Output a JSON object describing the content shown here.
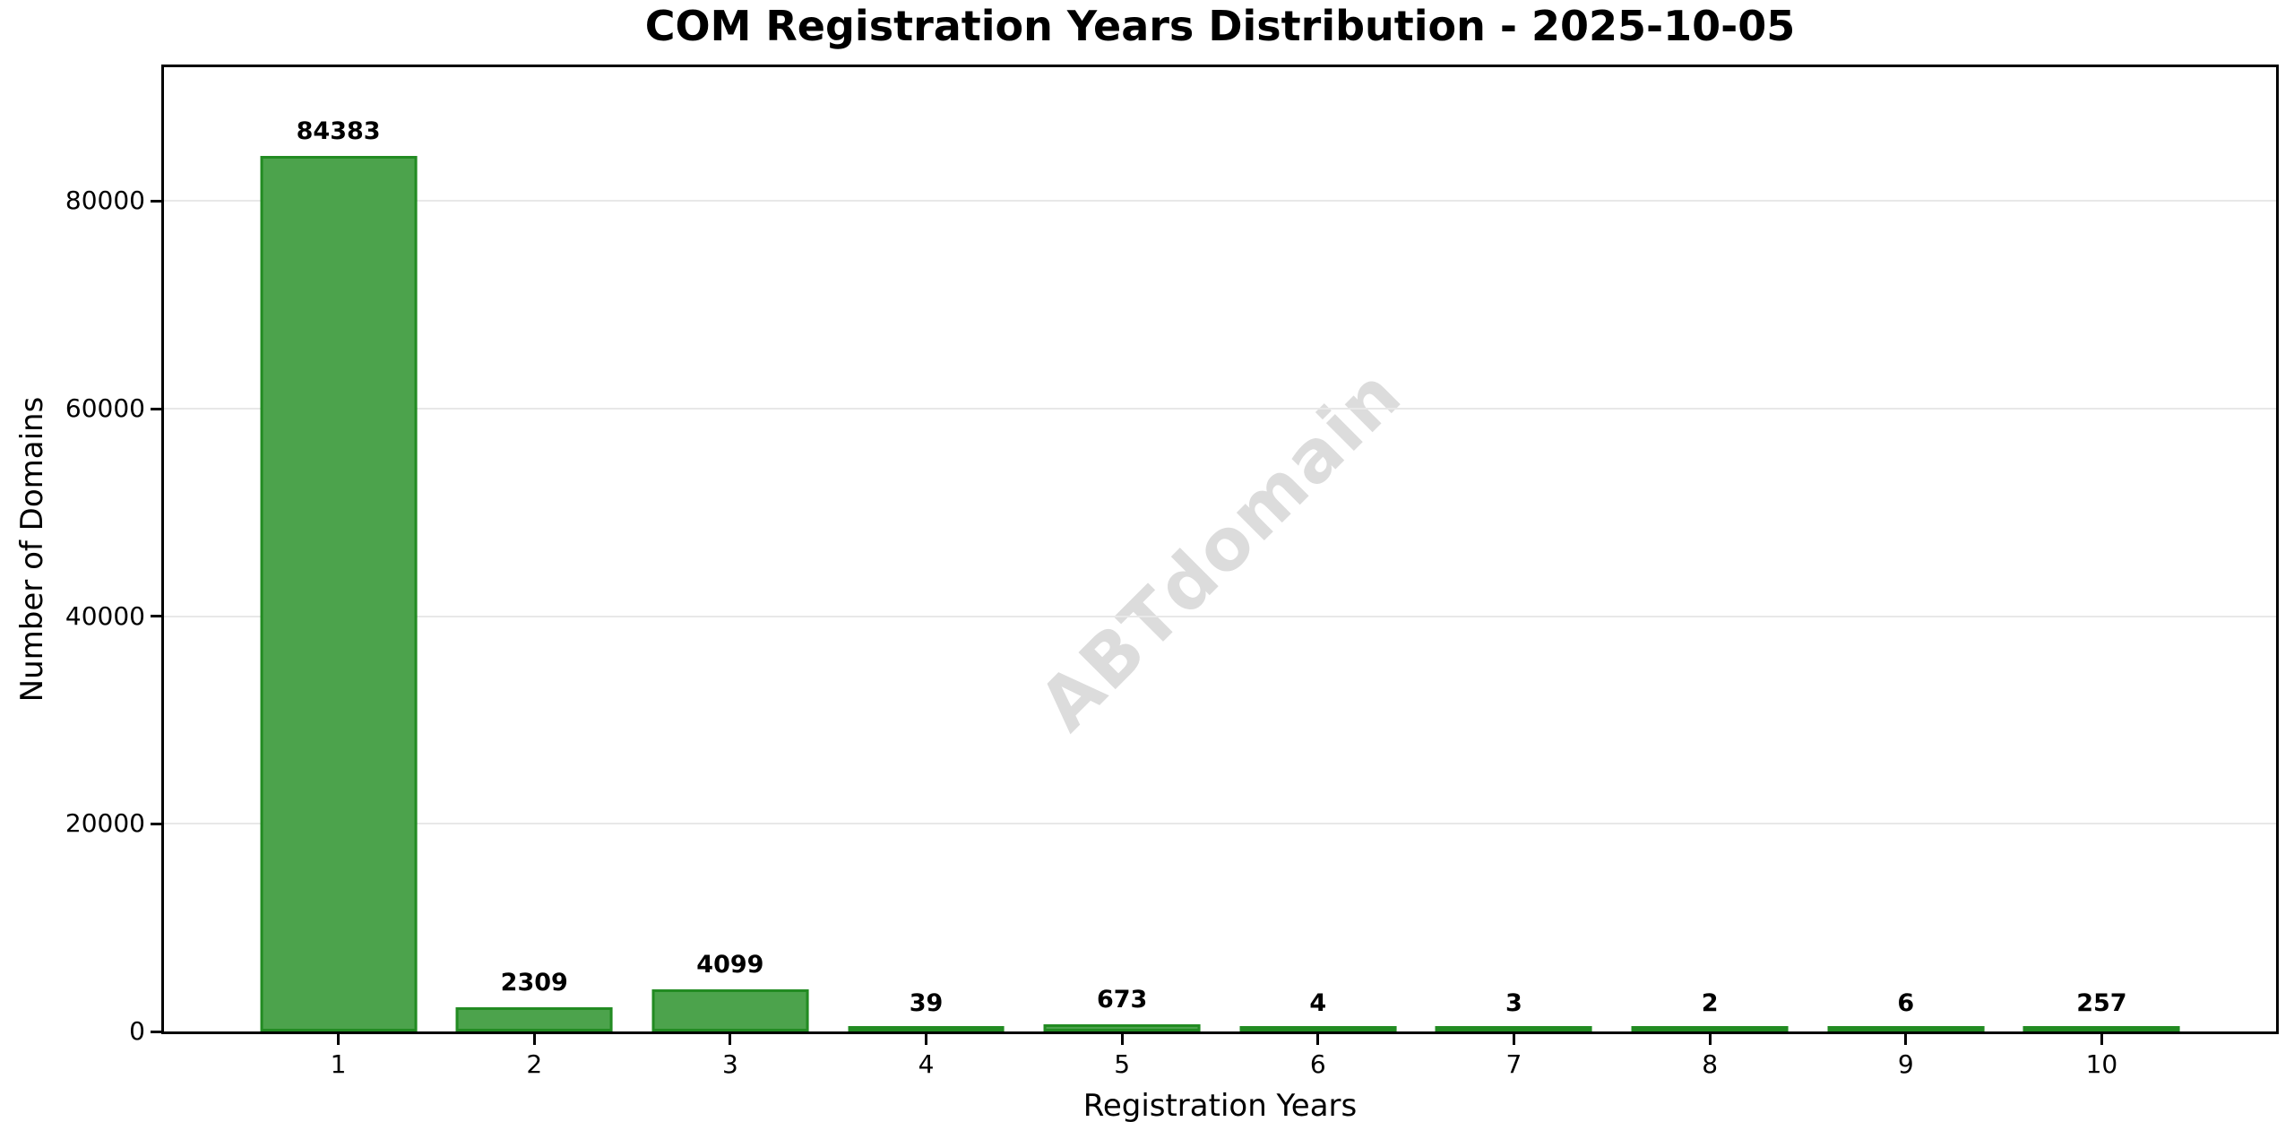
{
  "chart_data": {
    "type": "bar",
    "title": "COM Registration Years Distribution - 2025-10-05",
    "xlabel": "Registration Years",
    "ylabel": "Number of Domains",
    "categories": [
      "1",
      "2",
      "3",
      "4",
      "5",
      "6",
      "7",
      "8",
      "9",
      "10"
    ],
    "values": [
      84383,
      2309,
      4099,
      39,
      673,
      4,
      3,
      2,
      6,
      257
    ],
    "bar_labels": [
      "84383",
      "2309",
      "4099",
      "39",
      "673",
      "4",
      "3",
      "2",
      "6",
      "257"
    ],
    "y_ticks": [
      0,
      20000,
      40000,
      60000,
      80000
    ],
    "y_tick_labels": [
      "0",
      "20000",
      "40000",
      "60000",
      "80000"
    ],
    "ylim": [
      0,
      92900
    ],
    "xlim": [
      0.11,
      10.89
    ],
    "bar_width_units": 0.8,
    "grid": "horizontal",
    "legend": "none",
    "watermark": "ABTdomain",
    "colors": {
      "bar_fill": "#4CA34C",
      "bar_edge": "#228B22",
      "gridline": "#e8e8e8",
      "watermark": "#dcdcdc",
      "text": "#000000",
      "background": "#ffffff"
    }
  }
}
